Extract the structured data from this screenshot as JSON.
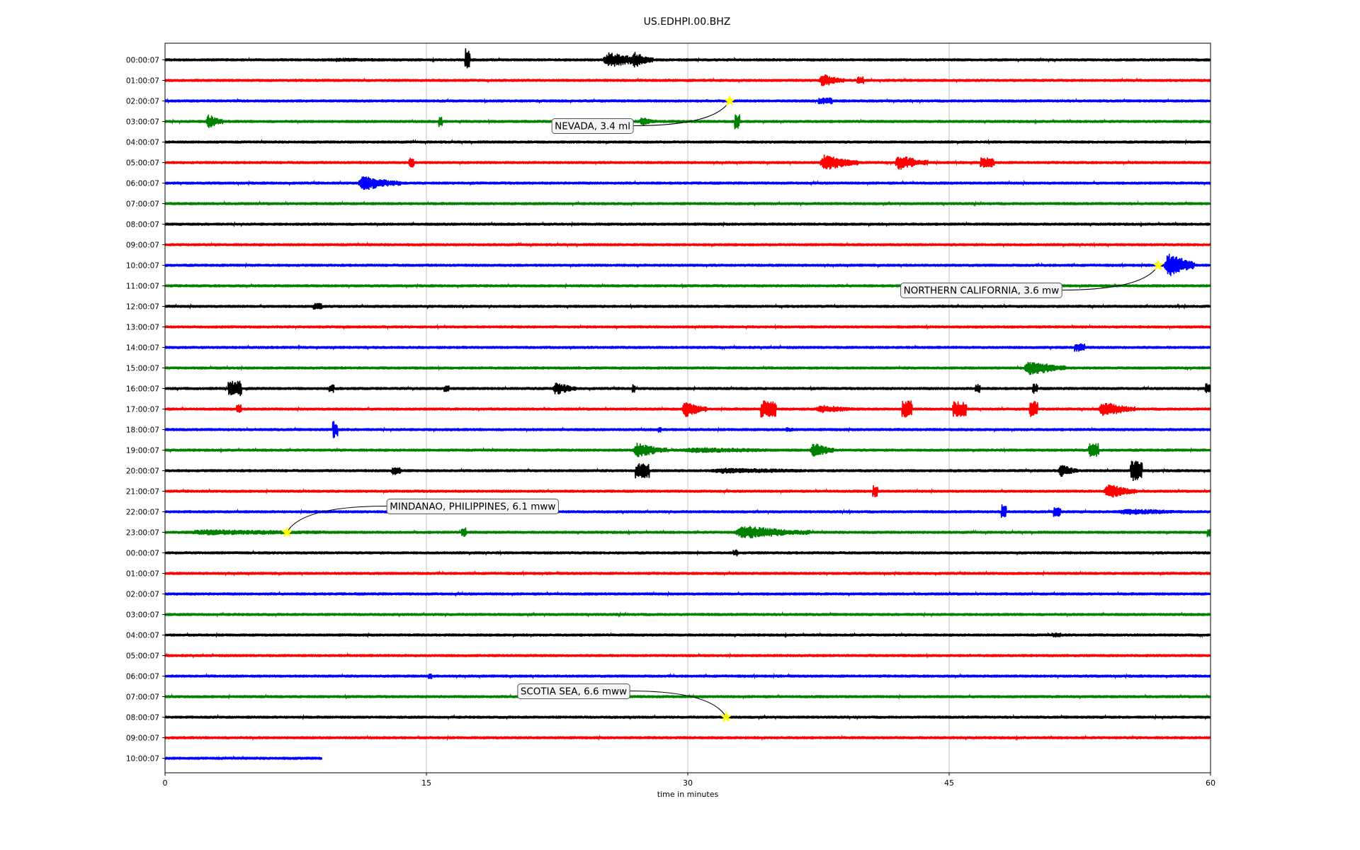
{
  "chart_data": {
    "type": "line",
    "title": "US.EDHPI.00.BHZ",
    "xlabel": "time in minutes",
    "ylabel": "",
    "xlim": [
      0,
      60
    ],
    "xticks": [
      "0",
      "15",
      "30",
      "45",
      "60"
    ],
    "grid": "vertical",
    "row_labels": [
      "00:00:07",
      "01:00:07",
      "02:00:07",
      "03:00:07",
      "04:00:07",
      "05:00:07",
      "06:00:07",
      "07:00:07",
      "08:00:07",
      "09:00:07",
      "10:00:07",
      "11:00:07",
      "12:00:07",
      "13:00:07",
      "14:00:07",
      "15:00:07",
      "16:00:07",
      "17:00:07",
      "18:00:07",
      "19:00:07",
      "20:00:07",
      "21:00:07",
      "22:00:07",
      "23:00:07",
      "00:00:07",
      "01:00:07",
      "02:00:07",
      "03:00:07",
      "04:00:07",
      "05:00:07",
      "06:00:07",
      "07:00:07",
      "08:00:07",
      "09:00:07",
      "10:00:07"
    ],
    "trace_colors": [
      "#000000",
      "#ff0000",
      "#0000ff",
      "#008000"
    ],
    "last_row_end_minute": 9,
    "bursts": [
      {
        "row": 0,
        "t": 8.5,
        "dur": 9,
        "amp": 0.25
      },
      {
        "row": 0,
        "t": 17.2,
        "dur": 0.3,
        "amp": 1.4
      },
      {
        "row": 0,
        "t": 25,
        "dur": 3,
        "amp": 0.9
      },
      {
        "row": 0,
        "t": 26.7,
        "dur": 1.2,
        "amp": 1.0
      },
      {
        "row": 1,
        "t": 37.5,
        "dur": 1.5,
        "amp": 0.8
      },
      {
        "row": 1,
        "t": 39.7,
        "dur": 0.4,
        "amp": 0.5
      },
      {
        "row": 2,
        "t": 37.5,
        "dur": 0.8,
        "amp": 0.4
      },
      {
        "row": 3,
        "t": 2.3,
        "dur": 1.0,
        "amp": 0.9
      },
      {
        "row": 3,
        "t": 15.7,
        "dur": 0.2,
        "amp": 0.7
      },
      {
        "row": 3,
        "t": 27.2,
        "dur": 1.0,
        "amp": 0.6
      },
      {
        "row": 3,
        "t": 32.7,
        "dur": 0.3,
        "amp": 0.9
      },
      {
        "row": 5,
        "t": 14.0,
        "dur": 0.3,
        "amp": 0.6
      },
      {
        "row": 5,
        "t": 37.5,
        "dur": 2.3,
        "amp": 1.0
      },
      {
        "row": 5,
        "t": 41.8,
        "dur": 2.0,
        "amp": 0.9
      },
      {
        "row": 5,
        "t": 46.8,
        "dur": 0.8,
        "amp": 0.6
      },
      {
        "row": 6,
        "t": 11.0,
        "dur": 2.5,
        "amp": 0.9
      },
      {
        "row": 10,
        "t": 57.3,
        "dur": 1.8,
        "amp": 1.5
      },
      {
        "row": 12,
        "t": 8.5,
        "dur": 0.5,
        "amp": 0.4
      },
      {
        "row": 14,
        "t": 52.2,
        "dur": 0.6,
        "amp": 0.5
      },
      {
        "row": 15,
        "t": 49.2,
        "dur": 2.5,
        "amp": 0.9
      },
      {
        "row": 16,
        "t": 3.6,
        "dur": 0.8,
        "amp": 0.9
      },
      {
        "row": 16,
        "t": 9.4,
        "dur": 0.3,
        "amp": 0.5
      },
      {
        "row": 16,
        "t": 16.0,
        "dur": 0.3,
        "amp": 0.4
      },
      {
        "row": 16,
        "t": 22.2,
        "dur": 1.4,
        "amp": 0.8
      },
      {
        "row": 16,
        "t": 26.8,
        "dur": 0.2,
        "amp": 0.5
      },
      {
        "row": 16,
        "t": 46.5,
        "dur": 0.3,
        "amp": 0.6
      },
      {
        "row": 16,
        "t": 49.8,
        "dur": 0.3,
        "amp": 0.6
      },
      {
        "row": 16,
        "t": 59.7,
        "dur": 0.3,
        "amp": 0.6
      },
      {
        "row": 17,
        "t": 4.1,
        "dur": 0.3,
        "amp": 0.6
      },
      {
        "row": 17,
        "t": 29.6,
        "dur": 1.5,
        "amp": 1.0
      },
      {
        "row": 17,
        "t": 34.2,
        "dur": 0.9,
        "amp": 1.0
      },
      {
        "row": 17,
        "t": 37.2,
        "dur": 3.0,
        "amp": 0.5
      },
      {
        "row": 17,
        "t": 42.3,
        "dur": 0.6,
        "amp": 1.0
      },
      {
        "row": 17,
        "t": 45.2,
        "dur": 0.8,
        "amp": 0.9
      },
      {
        "row": 17,
        "t": 49.6,
        "dur": 0.5,
        "amp": 1.0
      },
      {
        "row": 17,
        "t": 53.5,
        "dur": 2.2,
        "amp": 0.9
      },
      {
        "row": 18,
        "t": 9.6,
        "dur": 0.3,
        "amp": 1.0
      },
      {
        "row": 18,
        "t": 28.3,
        "dur": 0.2,
        "amp": 0.4
      },
      {
        "row": 18,
        "t": 35.5,
        "dur": 1.2,
        "amp": 0.3
      },
      {
        "row": 19,
        "t": 26.8,
        "dur": 2.0,
        "amp": 0.9
      },
      {
        "row": 19,
        "t": 29,
        "dur": 9,
        "amp": 0.35
      },
      {
        "row": 19,
        "t": 37.0,
        "dur": 1.4,
        "amp": 0.9
      },
      {
        "row": 19,
        "t": 53.0,
        "dur": 0.6,
        "amp": 0.8
      },
      {
        "row": 20,
        "t": 13.0,
        "dur": 0.5,
        "amp": 0.5
      },
      {
        "row": 20,
        "t": 27.0,
        "dur": 0.8,
        "amp": 0.9
      },
      {
        "row": 20,
        "t": 30.5,
        "dur": 10,
        "amp": 0.35
      },
      {
        "row": 20,
        "t": 51.2,
        "dur": 1.2,
        "amp": 0.8
      },
      {
        "row": 20,
        "t": 55.4,
        "dur": 0.7,
        "amp": 1.2
      },
      {
        "row": 21,
        "t": 40.6,
        "dur": 0.3,
        "amp": 0.7
      },
      {
        "row": 21,
        "t": 53.8,
        "dur": 2.0,
        "amp": 0.9
      },
      {
        "row": 22,
        "t": 21.8,
        "dur": 0.3,
        "amp": 0.3
      },
      {
        "row": 22,
        "t": 48.0,
        "dur": 0.3,
        "amp": 1.0
      },
      {
        "row": 22,
        "t": 51.0,
        "dur": 0.4,
        "amp": 0.6
      },
      {
        "row": 22,
        "t": 54.2,
        "dur": 5.8,
        "amp": 0.4
      },
      {
        "row": 23,
        "t": 0,
        "dur": 15,
        "amp": 0.35
      },
      {
        "row": 23,
        "t": 17.0,
        "dur": 0.3,
        "amp": 0.6
      },
      {
        "row": 23,
        "t": 32.5,
        "dur": 4.5,
        "amp": 0.8
      },
      {
        "row": 23,
        "t": 59.8,
        "dur": 0.2,
        "amp": 0.6
      },
      {
        "row": 24,
        "t": 32.6,
        "dur": 0.3,
        "amp": 0.4
      },
      {
        "row": 28,
        "t": 50.9,
        "dur": 0.5,
        "amp": 0.3
      },
      {
        "row": 30,
        "t": 15.1,
        "dur": 0.2,
        "amp": 0.4
      }
    ],
    "events": [
      {
        "label": "NEVADA, 3.4 ml",
        "row": 2,
        "t": 32.4
      },
      {
        "label": "NORTHERN CALIFORNIA, 3.6 mw",
        "row": 10,
        "t": 57.0
      },
      {
        "label": "MINDANAO, PHILIPPINES, 6.1 mww",
        "row": 23,
        "t": 7.0
      },
      {
        "label": "SCOTIA SEA, 6.6 mww",
        "row": 32,
        "t": 32.2
      }
    ],
    "marker_color": "#ffff00"
  }
}
